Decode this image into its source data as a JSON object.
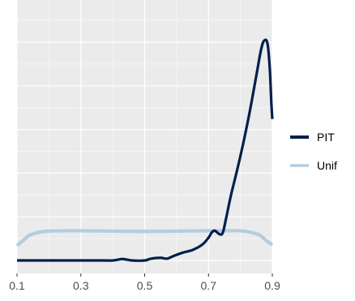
{
  "chart_data": {
    "type": "line",
    "title": "",
    "xlabel": "",
    "ylabel": "",
    "xlim": [
      0.1,
      0.9
    ],
    "ylim": [
      0,
      12.5
    ],
    "x_ticks": [
      0.1,
      0.3,
      0.5,
      0.7,
      0.9
    ],
    "x_tick_labels": [
      "0.1",
      "0.3",
      "0.5",
      "0.7",
      "0.9"
    ],
    "grid": true,
    "y_tick_labels_visible": false,
    "legend_position": "right",
    "series": [
      {
        "name": "PIT",
        "color": "#011f4b",
        "x": [
          0.1,
          0.35,
          0.4,
          0.43,
          0.46,
          0.5,
          0.52,
          0.55,
          0.57,
          0.59,
          0.62,
          0.65,
          0.68,
          0.7,
          0.71,
          0.72,
          0.735,
          0.745,
          0.755,
          0.77,
          0.79,
          0.81,
          0.83,
          0.85,
          0.865,
          0.875,
          0.885,
          0.892,
          0.897,
          0.9
        ],
        "y": [
          0.0,
          0.0,
          0.0,
          0.08,
          0.0,
          0.0,
          0.1,
          0.15,
          0.1,
          0.25,
          0.45,
          0.6,
          0.9,
          1.3,
          1.6,
          1.7,
          1.5,
          1.6,
          2.4,
          3.7,
          5.2,
          6.8,
          8.6,
          10.6,
          12.1,
          12.6,
          12.4,
          11.0,
          9.0,
          8.1
        ]
      },
      {
        "name": "Unif",
        "color": "#b3cde0",
        "x": [
          0.1,
          0.12,
          0.14,
          0.17,
          0.2,
          0.25,
          0.3,
          0.4,
          0.5,
          0.6,
          0.7,
          0.75,
          0.8,
          0.83,
          0.86,
          0.88,
          0.9
        ],
        "y": [
          0.85,
          1.15,
          1.45,
          1.62,
          1.68,
          1.7,
          1.7,
          1.68,
          1.66,
          1.68,
          1.7,
          1.7,
          1.7,
          1.62,
          1.45,
          1.15,
          0.9
        ]
      }
    ]
  }
}
